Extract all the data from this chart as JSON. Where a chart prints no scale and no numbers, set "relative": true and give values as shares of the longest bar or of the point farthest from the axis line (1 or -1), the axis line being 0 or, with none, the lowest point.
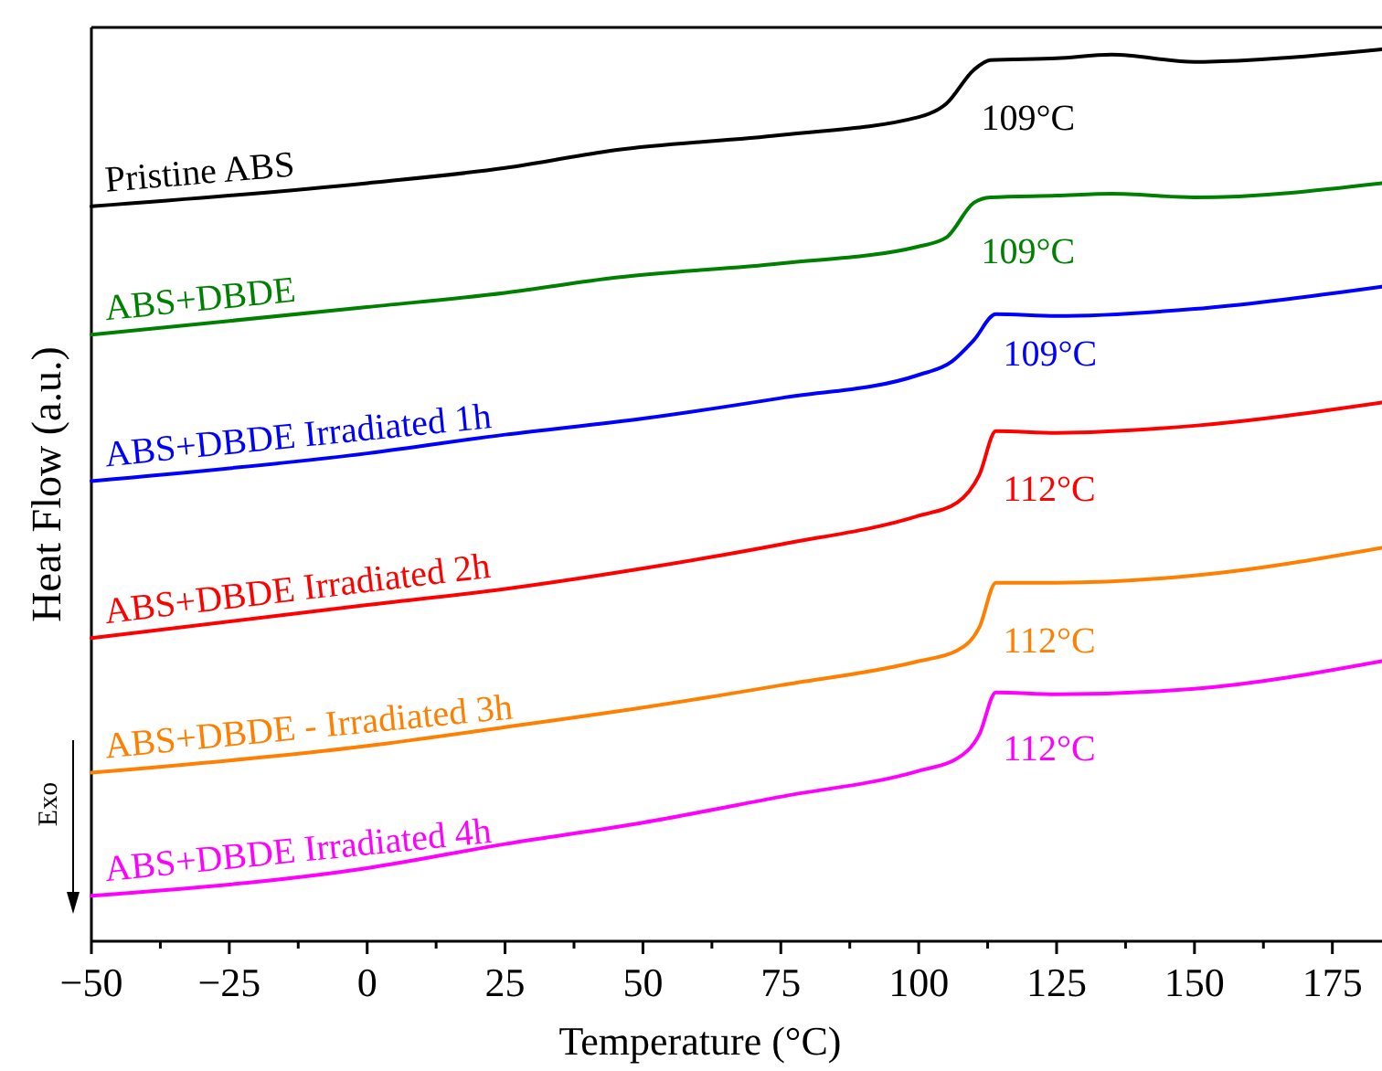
{
  "chart_data": {
    "type": "line",
    "relative": true,
    "xlabel": "Temperature (°C)",
    "ylabel": "Heat Flow (a.u.)",
    "xlim": [
      -50,
      184
    ],
    "xticks": [
      -50,
      {
        "value": -37.5,
        "label": null
      },
      -25,
      {
        "value": -12.5,
        "label": null
      },
      0,
      {
        "value": 12.5,
        "label": null
      },
      25,
      {
        "value": 37.5,
        "label": null
      },
      50,
      {
        "value": 62.5,
        "label": null
      },
      75,
      {
        "value": 87.5,
        "label": null
      },
      100,
      {
        "value": 112.5,
        "label": null
      },
      125,
      {
        "value": 137.5,
        "label": null
      },
      150,
      {
        "value": 162.5,
        "label": null
      },
      175
    ],
    "grid": false,
    "marker": "none",
    "line_style": "solid",
    "series": [
      {
        "name": "Pristine ABS",
        "color": "#000000",
        "x": [
          -50,
          0,
          25,
          45,
          75,
          100,
          105,
          110,
          113,
          125,
          135,
          150,
          160,
          184
        ],
        "values": [
          0.824,
          0.85,
          0.867,
          0.887,
          0.904,
          0.924,
          0.939,
          0.977,
          0.988,
          0.99,
          0.994,
          0.986,
          0.988,
          1.0
        ]
      },
      {
        "name": "ABS+DBDE",
        "color": "#008000",
        "x": [
          -50,
          0,
          25,
          45,
          75,
          100,
          105,
          110,
          113,
          125,
          135,
          150,
          184
        ],
        "values": [
          0.68,
          0.711,
          0.727,
          0.744,
          0.76,
          0.779,
          0.789,
          0.828,
          0.834,
          0.836,
          0.838,
          0.834,
          0.85
        ]
      },
      {
        "name": "ABS+DBDE Irradiated 1h",
        "color": "#0000ff",
        "x": [
          -50,
          0,
          25,
          50,
          75,
          100,
          106,
          110,
          114,
          125,
          150,
          184
        ],
        "values": [
          0.516,
          0.547,
          0.568,
          0.586,
          0.609,
          0.635,
          0.65,
          0.674,
          0.703,
          0.701,
          0.709,
          0.734
        ]
      },
      {
        "name": "ABS+DBDE Irradiated 2h",
        "color": "#ff0000",
        "x": [
          -50,
          0,
          25,
          50,
          75,
          100,
          107,
          111,
          114,
          125,
          150,
          184
        ],
        "values": [
          0.34,
          0.377,
          0.395,
          0.418,
          0.445,
          0.477,
          0.492,
          0.523,
          0.572,
          0.57,
          0.578,
          0.604
        ]
      },
      {
        "name": "ABS+DBDE - Irradiated 3h",
        "color": "#ff8000",
        "x": [
          -50,
          0,
          25,
          50,
          75,
          100,
          107,
          111,
          114,
          125,
          150,
          184
        ],
        "values": [
          0.189,
          0.219,
          0.24,
          0.262,
          0.287,
          0.314,
          0.326,
          0.352,
          0.402,
          0.402,
          0.41,
          0.441
        ]
      },
      {
        "name": "ABS+DBDE Irradiated 4h",
        "color": "#ff00ff",
        "x": [
          -50,
          0,
          25,
          50,
          75,
          100,
          107,
          111,
          114,
          125,
          150,
          184
        ],
        "values": [
          0.051,
          0.082,
          0.109,
          0.133,
          0.162,
          0.191,
          0.205,
          0.232,
          0.279,
          0.277,
          0.283,
          0.314
        ]
      }
    ],
    "annotations": [
      "109°C",
      "109°C",
      "109°C",
      "112°C",
      "112°C",
      "112°C",
      "Exo"
    ]
  }
}
